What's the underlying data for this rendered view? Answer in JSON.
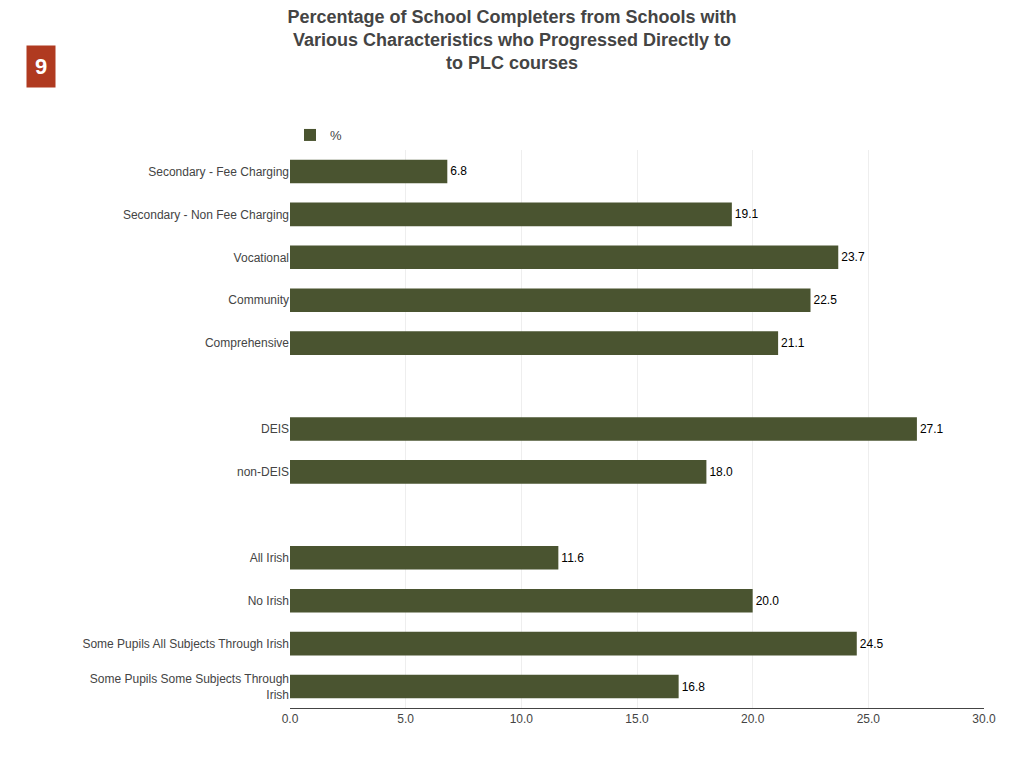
{
  "chart_data": {
    "type": "bar",
    "orientation": "horizontal",
    "title": "Percentage of School Completers from Schools with\nVarious Characteristics who Progressed Directly to\nto PLC courses",
    "categories": [
      "Secondary - Fee Charging",
      "Secondary - Non Fee Charging",
      "Vocational",
      "Community",
      "Comprehensive",
      null,
      "DEIS",
      "non-DEIS",
      null,
      "All Irish",
      "No Irish",
      "Some Pupils All Subjects Through Irish",
      "Some Pupils Some Subjects Through\nIrish"
    ],
    "series": [
      {
        "name": "%",
        "color": "#4a5430",
        "values": [
          6.8,
          19.1,
          23.7,
          22.5,
          21.1,
          null,
          27.1,
          18.0,
          null,
          11.6,
          20.0,
          24.5,
          16.8
        ],
        "value_labels": [
          "6.8",
          "19.1",
          "23.7",
          "22.5",
          "21.1",
          null,
          "27.1",
          "18.0",
          null,
          "11.6",
          "20.0",
          "24.5",
          "16.8"
        ]
      }
    ],
    "xlim": [
      0,
      30.0
    ],
    "xticks": [
      {
        "value": 0,
        "label": "0.0"
      },
      {
        "value": 5,
        "label": "5.0"
      },
      {
        "value": 10,
        "label": "10.0"
      },
      {
        "value": 15,
        "label": "15.0"
      },
      {
        "value": 20,
        "label": "20.0"
      },
      {
        "value": 25,
        "label": "25.0"
      },
      {
        "value": 30,
        "label": "30.0"
      }
    ],
    "grid": true,
    "data_labels": true,
    "legend": "top-left",
    "annotations": [
      {
        "text": "9",
        "color": "#b03a20"
      }
    ]
  }
}
